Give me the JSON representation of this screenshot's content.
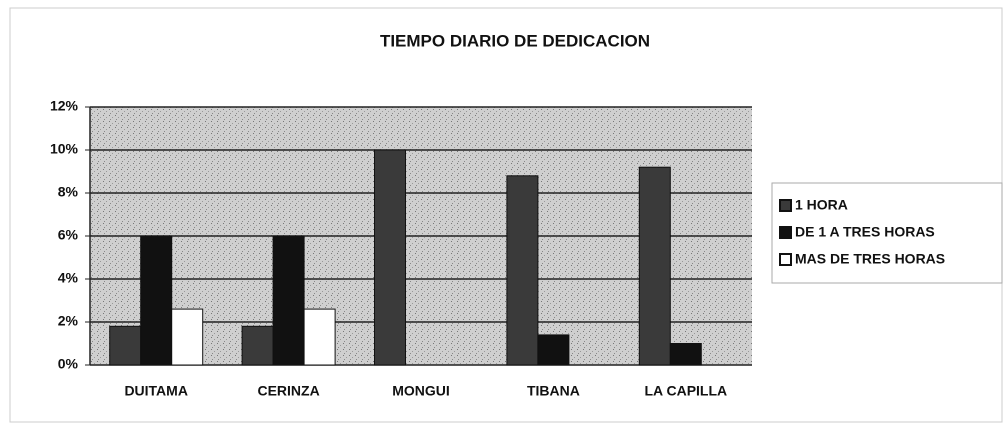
{
  "chart_data": {
    "type": "bar",
    "title": "TIEMPO DIARIO DE DEDICACION",
    "categories": [
      "DUITAMA",
      "CERINZA",
      "MONGUI",
      "TIBANA",
      "LA CAPILLA"
    ],
    "series": [
      {
        "name": "1 HORA",
        "color": "#3a3a3a",
        "values": [
          1.8,
          1.8,
          10,
          8.8,
          9.2
        ]
      },
      {
        "name": "DE 1 A TRES HORAS",
        "color": "#111111",
        "values": [
          6,
          6,
          0,
          1.4,
          1.0
        ]
      },
      {
        "name": "MAS DE TRES HORAS",
        "color": "#ffffff",
        "values": [
          2.6,
          2.6,
          0,
          0,
          0
        ]
      }
    ],
    "ylim": [
      0,
      12
    ],
    "yticks": [
      {
        "value": 0,
        "label": "0%"
      },
      {
        "value": 2,
        "label": "2%"
      },
      {
        "value": 4,
        "label": "4%"
      },
      {
        "value": 6,
        "label": "6%"
      },
      {
        "value": 8,
        "label": "8%"
      },
      {
        "value": 10,
        "label": "10%"
      },
      {
        "value": 12,
        "label": "12%"
      }
    ],
    "grid": true,
    "legend": "right"
  }
}
